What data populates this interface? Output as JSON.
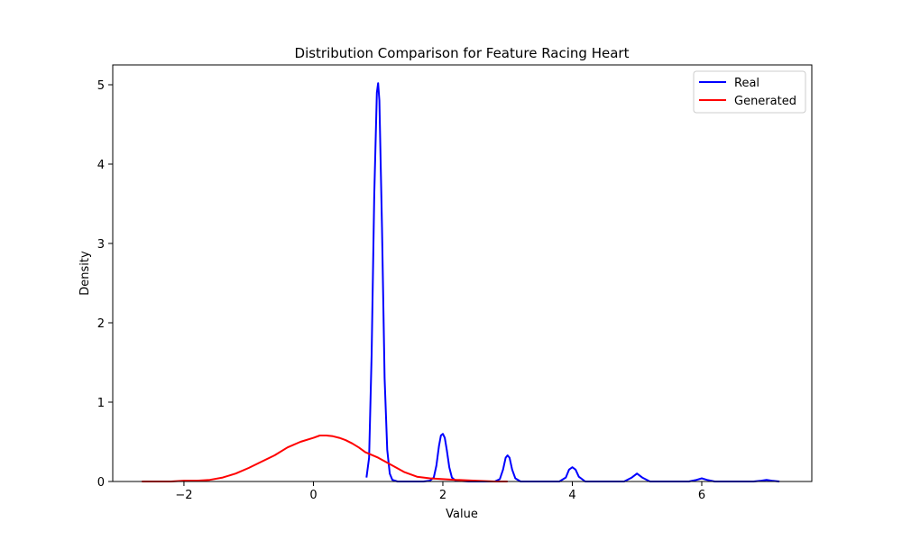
{
  "chart_data": {
    "type": "line",
    "title": "Distribution Comparison for Feature Racing Heart",
    "xlabel": "Value",
    "ylabel": "Density",
    "xlim": [
      -3.1,
      7.7
    ],
    "ylim": [
      0,
      5.25
    ],
    "xticks": [
      -2,
      0,
      2,
      4,
      6
    ],
    "xtick_labels": [
      "−2",
      "0",
      "2",
      "4",
      "6"
    ],
    "yticks": [
      0,
      1,
      2,
      3,
      4,
      5
    ],
    "ytick_labels": [
      "0",
      "1",
      "2",
      "3",
      "4",
      "5"
    ],
    "grid": false,
    "legend_position": "top-right",
    "series": [
      {
        "name": "Real",
        "color": "#0000ff",
        "x": [
          0.82,
          0.86,
          0.9,
          0.94,
          0.98,
          1.0,
          1.02,
          1.06,
          1.1,
          1.14,
          1.18,
          1.22,
          1.3,
          1.5,
          1.7,
          1.8,
          1.86,
          1.9,
          1.94,
          1.97,
          2.0,
          2.03,
          2.06,
          2.1,
          2.14,
          2.2,
          2.4,
          2.6,
          2.8,
          2.88,
          2.93,
          2.97,
          3.0,
          3.03,
          3.07,
          3.12,
          3.2,
          3.4,
          3.6,
          3.8,
          3.9,
          3.95,
          4.0,
          4.05,
          4.1,
          4.2,
          4.4,
          4.6,
          4.8,
          4.92,
          5.0,
          5.08,
          5.2,
          5.4,
          5.6,
          5.8,
          5.92,
          6.0,
          6.08,
          6.2,
          6.5,
          6.8,
          6.92,
          7.0,
          7.08,
          7.2
        ],
        "y": [
          0.05,
          0.3,
          1.6,
          3.6,
          4.9,
          5.02,
          4.8,
          3.2,
          1.3,
          0.4,
          0.1,
          0.02,
          0.0,
          0.0,
          0.0,
          0.01,
          0.05,
          0.2,
          0.45,
          0.58,
          0.6,
          0.55,
          0.4,
          0.18,
          0.05,
          0.01,
          0.0,
          0.0,
          0.0,
          0.03,
          0.15,
          0.3,
          0.33,
          0.3,
          0.15,
          0.04,
          0.0,
          0.0,
          0.0,
          0.0,
          0.05,
          0.15,
          0.18,
          0.15,
          0.06,
          0.0,
          0.0,
          0.0,
          0.0,
          0.05,
          0.1,
          0.05,
          0.0,
          0.0,
          0.0,
          0.0,
          0.02,
          0.04,
          0.02,
          0.0,
          0.0,
          0.0,
          0.01,
          0.02,
          0.01,
          0.0
        ]
      },
      {
        "name": "Generated",
        "color": "#ff0000",
        "x": [
          -2.65,
          -2.4,
          -2.2,
          -2.0,
          -1.8,
          -1.6,
          -1.4,
          -1.2,
          -1.0,
          -0.8,
          -0.6,
          -0.4,
          -0.2,
          0.0,
          0.1,
          0.2,
          0.3,
          0.4,
          0.5,
          0.6,
          0.7,
          0.8,
          1.0,
          1.2,
          1.4,
          1.6,
          1.8,
          2.0,
          2.2,
          2.5,
          2.8,
          3.0
        ],
        "y": [
          0.0,
          0.0,
          0.0,
          0.01,
          0.01,
          0.02,
          0.05,
          0.1,
          0.17,
          0.25,
          0.33,
          0.43,
          0.5,
          0.55,
          0.58,
          0.58,
          0.57,
          0.55,
          0.52,
          0.48,
          0.43,
          0.37,
          0.3,
          0.21,
          0.12,
          0.06,
          0.04,
          0.03,
          0.02,
          0.01,
          0.0,
          0.0
        ]
      }
    ]
  }
}
